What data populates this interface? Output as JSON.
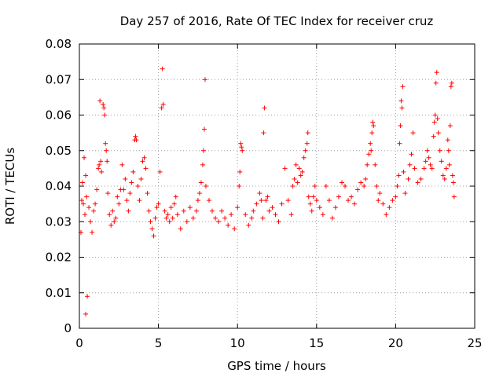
{
  "chart_data": {
    "type": "scatter",
    "title": "Day 257 of 2016, Rate Of TEC Index for receiver cruz",
    "xlabel": "GPS time / hours",
    "ylabel": "ROTI / TECUs",
    "xlim": [
      0,
      25
    ],
    "ylim": [
      0,
      0.08
    ],
    "x_ticks": [
      0,
      5,
      10,
      15,
      20,
      25
    ],
    "x_tick_labels": [
      "0",
      "5",
      "10",
      "15",
      "20",
      "25"
    ],
    "y_ticks": [
      0,
      0.01,
      0.02,
      0.03,
      0.04,
      0.05,
      0.06,
      0.07,
      0.08
    ],
    "y_tick_labels": [
      "0",
      "0.01",
      "0.02",
      "0.03",
      "0.04",
      "0.05",
      "0.06",
      "0.07",
      "0.08"
    ],
    "grid": true,
    "marker": "plus",
    "color": "#ff0000",
    "series": [
      {
        "name": "ROTI",
        "points": [
          [
            0.1,
            0.027
          ],
          [
            0.15,
            0.036
          ],
          [
            0.2,
            0.041
          ],
          [
            0.25,
            0.035
          ],
          [
            0.3,
            0.048
          ],
          [
            0.35,
            0.032
          ],
          [
            0.4,
            0.043
          ],
          [
            0.45,
            0.037
          ],
          [
            0.4,
            0.004
          ],
          [
            0.5,
            0.009
          ],
          [
            0.6,
            0.034
          ],
          [
            0.7,
            0.03
          ],
          [
            0.8,
            0.027
          ],
          [
            0.9,
            0.033
          ],
          [
            1.0,
            0.035
          ],
          [
            1.1,
            0.039
          ],
          [
            1.2,
            0.045
          ],
          [
            1.25,
            0.046
          ],
          [
            1.3,
            0.064
          ],
          [
            1.35,
            0.047
          ],
          [
            1.4,
            0.044
          ],
          [
            1.5,
            0.063
          ],
          [
            1.55,
            0.062
          ],
          [
            1.6,
            0.06
          ],
          [
            1.65,
            0.052
          ],
          [
            1.7,
            0.05
          ],
          [
            1.75,
            0.047
          ],
          [
            1.8,
            0.038
          ],
          [
            1.9,
            0.032
          ],
          [
            2.0,
            0.029
          ],
          [
            2.1,
            0.033
          ],
          [
            2.2,
            0.03
          ],
          [
            2.3,
            0.031
          ],
          [
            2.4,
            0.037
          ],
          [
            2.5,
            0.035
          ],
          [
            2.6,
            0.039
          ],
          [
            2.7,
            0.046
          ],
          [
            2.8,
            0.039
          ],
          [
            2.9,
            0.042
          ],
          [
            3.0,
            0.036
          ],
          [
            3.1,
            0.033
          ],
          [
            3.2,
            0.038
          ],
          [
            3.3,
            0.041
          ],
          [
            3.4,
            0.044
          ],
          [
            3.5,
            0.053
          ],
          [
            3.55,
            0.054
          ],
          [
            3.6,
            0.053
          ],
          [
            3.7,
            0.04
          ],
          [
            3.8,
            0.036
          ],
          [
            3.9,
            0.042
          ],
          [
            4.0,
            0.047
          ],
          [
            4.1,
            0.048
          ],
          [
            4.2,
            0.045
          ],
          [
            4.3,
            0.038
          ],
          [
            4.4,
            0.033
          ],
          [
            4.5,
            0.03
          ],
          [
            4.6,
            0.028
          ],
          [
            4.7,
            0.026
          ],
          [
            4.8,
            0.031
          ],
          [
            4.9,
            0.034
          ],
          [
            5.0,
            0.035
          ],
          [
            5.1,
            0.044
          ],
          [
            5.2,
            0.062
          ],
          [
            5.25,
            0.073
          ],
          [
            5.3,
            0.063
          ],
          [
            5.4,
            0.033
          ],
          [
            5.5,
            0.031
          ],
          [
            5.6,
            0.032
          ],
          [
            5.7,
            0.03
          ],
          [
            5.8,
            0.034
          ],
          [
            5.9,
            0.031
          ],
          [
            6.0,
            0.035
          ],
          [
            6.1,
            0.037
          ],
          [
            6.2,
            0.032
          ],
          [
            6.4,
            0.028
          ],
          [
            6.6,
            0.033
          ],
          [
            6.8,
            0.03
          ],
          [
            7.0,
            0.034
          ],
          [
            7.2,
            0.031
          ],
          [
            7.4,
            0.033
          ],
          [
            7.5,
            0.036
          ],
          [
            7.6,
            0.038
          ],
          [
            7.7,
            0.041
          ],
          [
            7.8,
            0.046
          ],
          [
            7.85,
            0.05
          ],
          [
            7.9,
            0.056
          ],
          [
            7.95,
            0.07
          ],
          [
            8.0,
            0.04
          ],
          [
            8.2,
            0.036
          ],
          [
            8.4,
            0.033
          ],
          [
            8.6,
            0.031
          ],
          [
            8.8,
            0.03
          ],
          [
            9.0,
            0.033
          ],
          [
            9.2,
            0.031
          ],
          [
            9.4,
            0.029
          ],
          [
            9.6,
            0.032
          ],
          [
            9.8,
            0.028
          ],
          [
            10.0,
            0.034
          ],
          [
            10.1,
            0.04
          ],
          [
            10.15,
            0.044
          ],
          [
            10.2,
            0.052
          ],
          [
            10.25,
            0.051
          ],
          [
            10.3,
            0.05
          ],
          [
            10.5,
            0.032
          ],
          [
            10.7,
            0.029
          ],
          [
            10.9,
            0.031
          ],
          [
            11.0,
            0.033
          ],
          [
            11.2,
            0.035
          ],
          [
            11.4,
            0.038
          ],
          [
            11.5,
            0.036
          ],
          [
            11.6,
            0.031
          ],
          [
            11.65,
            0.055
          ],
          [
            11.7,
            0.062
          ],
          [
            11.8,
            0.036
          ],
          [
            11.9,
            0.037
          ],
          [
            12.0,
            0.033
          ],
          [
            12.2,
            0.034
          ],
          [
            12.4,
            0.032
          ],
          [
            12.6,
            0.03
          ],
          [
            12.8,
            0.035
          ],
          [
            13.0,
            0.045
          ],
          [
            13.2,
            0.036
          ],
          [
            13.4,
            0.032
          ],
          [
            13.5,
            0.04
          ],
          [
            13.6,
            0.042
          ],
          [
            13.7,
            0.046
          ],
          [
            13.8,
            0.041
          ],
          [
            13.9,
            0.045
          ],
          [
            14.0,
            0.043
          ],
          [
            14.1,
            0.044
          ],
          [
            14.2,
            0.048
          ],
          [
            14.3,
            0.05
          ],
          [
            14.4,
            0.052
          ],
          [
            14.45,
            0.055
          ],
          [
            14.5,
            0.037
          ],
          [
            14.6,
            0.035
          ],
          [
            14.7,
            0.033
          ],
          [
            14.8,
            0.037
          ],
          [
            14.9,
            0.04
          ],
          [
            15.0,
            0.036
          ],
          [
            15.2,
            0.034
          ],
          [
            15.4,
            0.032
          ],
          [
            15.6,
            0.04
          ],
          [
            15.8,
            0.036
          ],
          [
            16.0,
            0.031
          ],
          [
            16.2,
            0.034
          ],
          [
            16.4,
            0.037
          ],
          [
            16.6,
            0.041
          ],
          [
            16.8,
            0.04
          ],
          [
            17.0,
            0.036
          ],
          [
            17.2,
            0.037
          ],
          [
            17.4,
            0.035
          ],
          [
            17.6,
            0.039
          ],
          [
            17.8,
            0.041
          ],
          [
            18.0,
            0.04
          ],
          [
            18.1,
            0.042
          ],
          [
            18.2,
            0.046
          ],
          [
            18.3,
            0.049
          ],
          [
            18.4,
            0.052
          ],
          [
            18.45,
            0.05
          ],
          [
            18.5,
            0.055
          ],
          [
            18.55,
            0.058
          ],
          [
            18.6,
            0.057
          ],
          [
            18.7,
            0.046
          ],
          [
            18.8,
            0.04
          ],
          [
            18.9,
            0.036
          ],
          [
            19.0,
            0.038
          ],
          [
            19.2,
            0.035
          ],
          [
            19.4,
            0.032
          ],
          [
            19.6,
            0.034
          ],
          [
            19.8,
            0.036
          ],
          [
            20.0,
            0.037
          ],
          [
            20.1,
            0.04
          ],
          [
            20.2,
            0.043
          ],
          [
            20.25,
            0.052
          ],
          [
            20.3,
            0.057
          ],
          [
            20.35,
            0.064
          ],
          [
            20.4,
            0.062
          ],
          [
            20.45,
            0.068
          ],
          [
            20.5,
            0.044
          ],
          [
            20.6,
            0.038
          ],
          [
            20.8,
            0.042
          ],
          [
            20.9,
            0.046
          ],
          [
            21.0,
            0.049
          ],
          [
            21.1,
            0.055
          ],
          [
            21.2,
            0.045
          ],
          [
            21.4,
            0.041
          ],
          [
            21.6,
            0.042
          ],
          [
            21.8,
            0.045
          ],
          [
            21.9,
            0.047
          ],
          [
            22.0,
            0.05
          ],
          [
            22.1,
            0.048
          ],
          [
            22.2,
            0.046
          ],
          [
            22.3,
            0.045
          ],
          [
            22.4,
            0.054
          ],
          [
            22.45,
            0.058
          ],
          [
            22.5,
            0.06
          ],
          [
            22.55,
            0.069
          ],
          [
            22.6,
            0.072
          ],
          [
            22.65,
            0.059
          ],
          [
            22.7,
            0.055
          ],
          [
            22.8,
            0.05
          ],
          [
            22.9,
            0.047
          ],
          [
            23.0,
            0.043
          ],
          [
            23.1,
            0.042
          ],
          [
            23.2,
            0.045
          ],
          [
            23.3,
            0.053
          ],
          [
            23.35,
            0.05
          ],
          [
            23.4,
            0.046
          ],
          [
            23.45,
            0.057
          ],
          [
            23.5,
            0.068
          ],
          [
            23.55,
            0.069
          ],
          [
            23.6,
            0.043
          ],
          [
            23.65,
            0.041
          ],
          [
            23.7,
            0.037
          ]
        ]
      }
    ]
  }
}
